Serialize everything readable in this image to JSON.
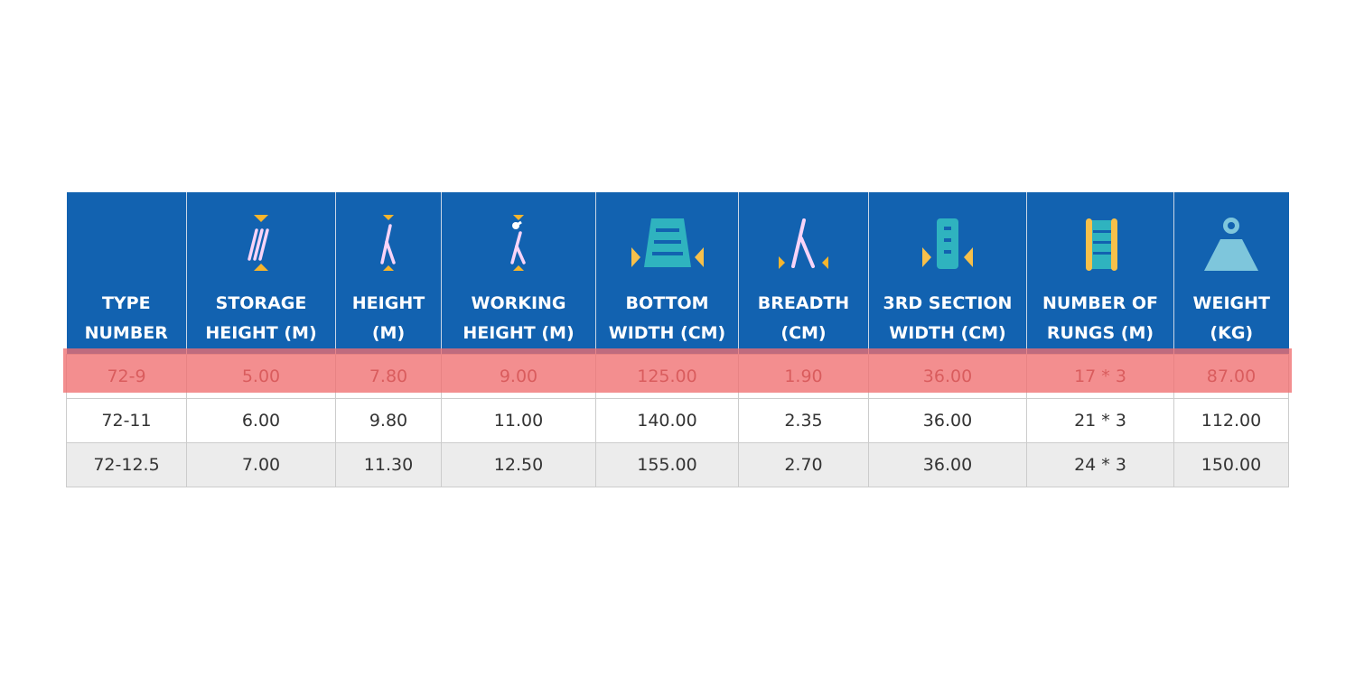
{
  "colors": {
    "header_bg": "#1262b0",
    "highlight": "#f4898a",
    "accent_yellow": "#f7b52c",
    "teal": "#2fb3bf",
    "pink": "#f8d4f8",
    "weight": "#7ec6dc"
  },
  "columns": [
    {
      "label": "TYPE NUMBER",
      "line1": "TYPE",
      "line2": "NUMBER",
      "icon": ""
    },
    {
      "label": "STORAGE HEIGHT (M)",
      "line1": "STORAGE",
      "line2": "HEIGHT (M)",
      "icon": "folded-ladder-icon"
    },
    {
      "label": "HEIGHT (M)",
      "line1": "HEIGHT",
      "line2": "(M)",
      "icon": "a-frame-ladder-icon"
    },
    {
      "label": "WORKING HEIGHT (M)",
      "line1": "WORKING",
      "line2": "HEIGHT (M)",
      "icon": "person-on-ladder-icon"
    },
    {
      "label": "BOTTOM WIDTH (CM)",
      "line1": "BOTTOM",
      "line2": "WIDTH (CM)",
      "icon": "ladder-bottom-width-icon"
    },
    {
      "label": "BREADTH (CM)",
      "line1": "BREADTH",
      "line2": "(CM)",
      "icon": "ladder-breadth-icon"
    },
    {
      "label": "3RD SECTION WIDTH (CM)",
      "line1": "3RD SECTION",
      "line2": "WIDTH (CM)",
      "icon": "ladder-section-width-icon"
    },
    {
      "label": "NUMBER OF RUNGS (M)",
      "line1": "NUMBER OF",
      "line2": "RUNGS (M)",
      "icon": "ladder-rungs-icon"
    },
    {
      "label": "WEIGHT (KG)",
      "line1": "WEIGHT",
      "line2": "(KG)",
      "icon": "weight-icon"
    }
  ],
  "rows": [
    [
      "72-9",
      "5.00",
      "7.80",
      "9.00",
      "125.00",
      "1.90",
      "36.00",
      "17 * 3",
      "87.00"
    ],
    [
      "72-11",
      "6.00",
      "9.80",
      "11.00",
      "140.00",
      "2.35",
      "36.00",
      "21 * 3",
      "112.00"
    ],
    [
      "72-12.5",
      "7.00",
      "11.30",
      "12.50",
      "155.00",
      "2.70",
      "36.00",
      "24 * 3",
      "150.00"
    ]
  ],
  "highlighted_row": 0
}
